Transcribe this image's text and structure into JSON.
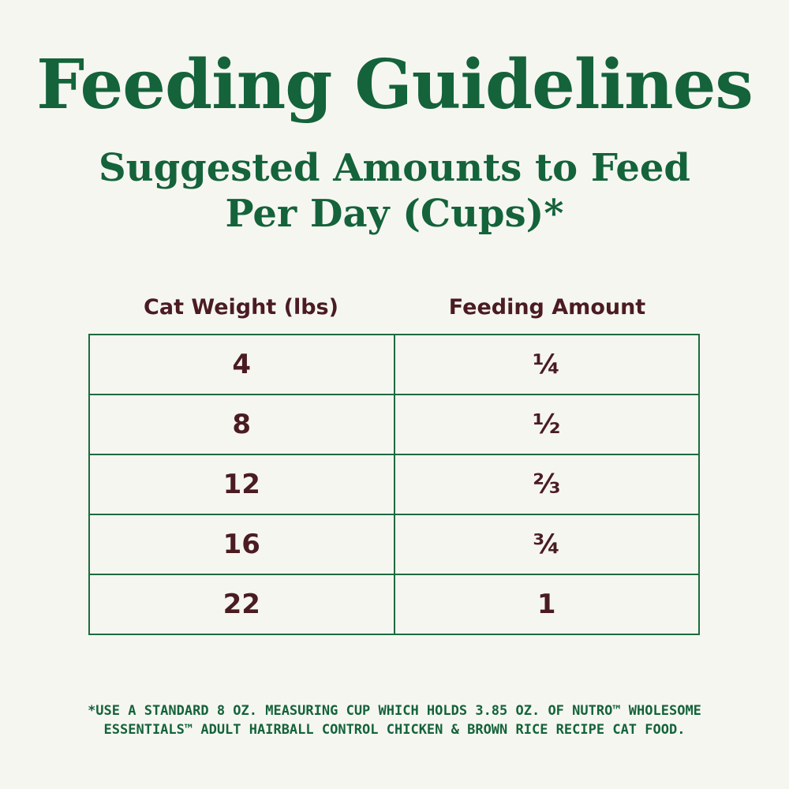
{
  "header": {
    "title": "Feeding Guidelines",
    "subtitle_lines": [
      "Suggested Amounts to Feed",
      "Per Day (Cups)*"
    ]
  },
  "table": {
    "columns": [
      "Cat Weight (lbs)",
      "Feeding Amount"
    ],
    "rows": [
      [
        4,
        "¼"
      ],
      [
        8,
        "½"
      ],
      [
        12,
        "⅔"
      ],
      [
        16,
        "¾"
      ],
      [
        22,
        "1"
      ]
    ]
  },
  "footnote": {
    "lines": [
      "*USE A STANDARD 8 OZ. MEASURING CUP WHICH HOLDS 3.85 OZ. OF NUTRO™ WHOLESOME",
      "ESSENTIALS™ ADULT HAIRBALL CONTROL CHICKEN & BROWN RICE RECIPE CAT FOOD."
    ]
  }
}
